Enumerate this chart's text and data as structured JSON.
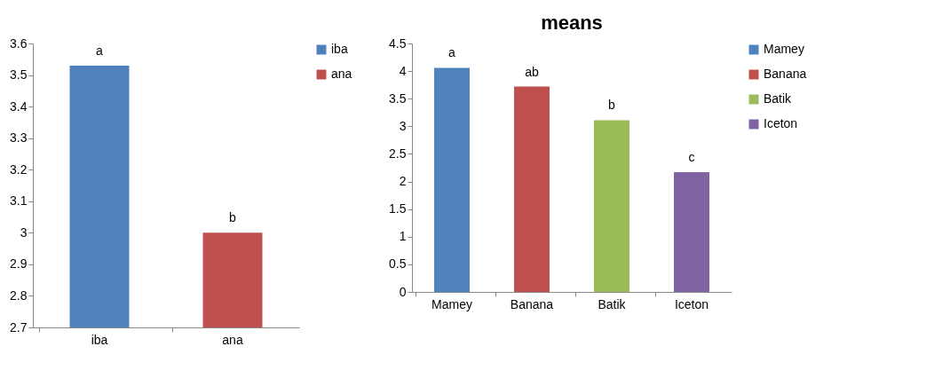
{
  "chart_data": [
    {
      "type": "bar",
      "categories": [
        "iba",
        "ana"
      ],
      "ylim": [
        2.7,
        3.6
      ],
      "yticks": [
        2.7,
        2.8,
        2.9,
        3,
        3.1,
        3.2,
        3.3,
        3.4,
        3.5,
        3.6
      ],
      "grid": false,
      "legend": "right",
      "series": [
        {
          "name": "iba",
          "color": "#4f81bd",
          "values": [
            3.53,
            null
          ]
        },
        {
          "name": "ana",
          "color": "#c0504d",
          "values": [
            null,
            3.0
          ]
        }
      ],
      "annotations": [
        {
          "text": "a",
          "x": "iba",
          "y": 3.53
        },
        {
          "text": "b",
          "x": "ana",
          "y": 3.0
        }
      ]
    },
    {
      "type": "bar",
      "title": "means",
      "categories": [
        "Mamey",
        "Banana",
        "Batik",
        "Iceton"
      ],
      "ylim": [
        0,
        4.5
      ],
      "yticks": [
        0,
        0.5,
        1,
        1.5,
        2,
        2.5,
        3,
        3.5,
        4,
        4.5
      ],
      "grid": false,
      "legend": "right",
      "series": [
        {
          "name": "Mamey",
          "color": "#4f81bd",
          "values": [
            4.06,
            null,
            null,
            null
          ]
        },
        {
          "name": "Banana",
          "color": "#c0504d",
          "values": [
            null,
            3.72,
            null,
            null
          ]
        },
        {
          "name": "Batik",
          "color": "#9bbb59",
          "values": [
            null,
            null,
            3.11,
            null
          ]
        },
        {
          "name": "Iceton",
          "color": "#8064a2",
          "values": [
            null,
            null,
            null,
            2.17
          ]
        }
      ],
      "annotations": [
        {
          "text": "a",
          "x": "Mamey",
          "y": 4.06
        },
        {
          "text": "ab",
          "x": "Banana",
          "y": 3.72
        },
        {
          "text": "b",
          "x": "Batik",
          "y": 3.11
        },
        {
          "text": "c",
          "x": "Iceton",
          "y": 2.17
        }
      ]
    }
  ]
}
